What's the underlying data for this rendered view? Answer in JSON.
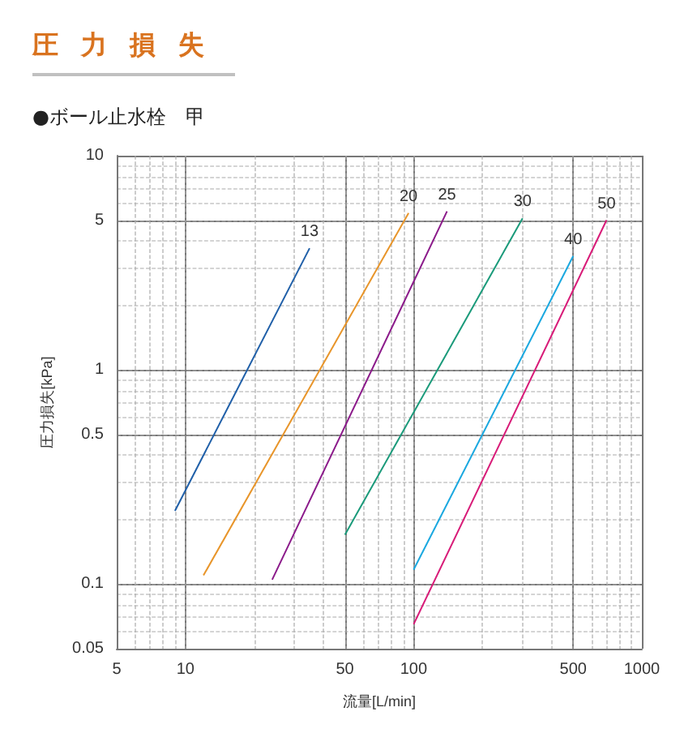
{
  "chart_data": {
    "type": "line",
    "title": "圧力損失",
    "subtitle": "●ボール止水栓　甲",
    "xlabel": "流量[L/min]",
    "ylabel": "圧力損失[kPa]",
    "log": "xy",
    "grid": true,
    "legend": false,
    "marker": "none",
    "line_style": "solid",
    "xlim": [
      5,
      1000
    ],
    "xticks": [
      5,
      10,
      50,
      100,
      500,
      1000
    ],
    "ylim": [
      0.05,
      10
    ],
    "yticks": [
      0.05,
      0.1,
      0.5,
      1,
      5,
      10
    ],
    "series": [
      {
        "name": "13",
        "color": "#1f5fa8",
        "x": [
          9,
          35
        ],
        "values": [
          0.22,
          3.7
        ]
      },
      {
        "name": "20",
        "color": "#e8952a",
        "x": [
          12,
          95
        ],
        "values": [
          0.11,
          5.4
        ]
      },
      {
        "name": "25",
        "color": "#8b1a8a",
        "x": [
          24,
          140
        ],
        "values": [
          0.105,
          5.5
        ]
      },
      {
        "name": "30",
        "color": "#1a9a7a",
        "x": [
          50,
          300
        ],
        "values": [
          0.17,
          5.1
        ]
      },
      {
        "name": "40",
        "color": "#1aa8e0",
        "x": [
          100,
          500
        ],
        "values": [
          0.117,
          3.4
        ]
      },
      {
        "name": "50",
        "color": "#d81b78",
        "x": [
          100,
          700
        ],
        "values": [
          0.065,
          5
        ]
      }
    ]
  }
}
